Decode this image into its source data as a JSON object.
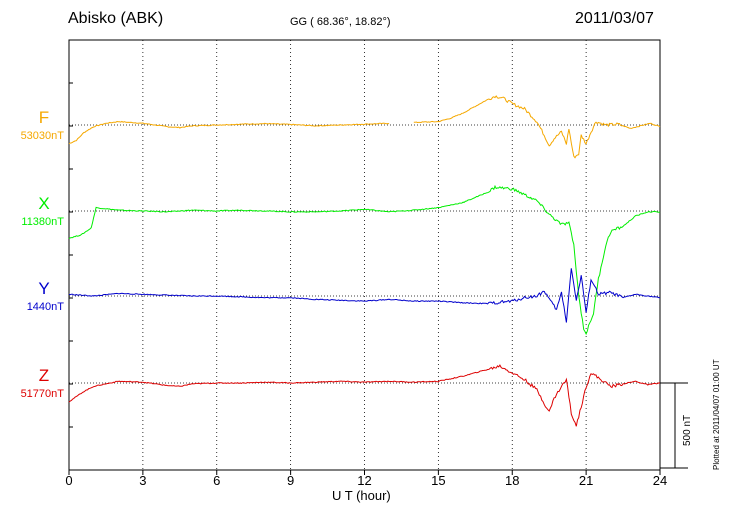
{
  "header": {
    "station": "Abisko (ABK)",
    "coordinates": "GG ( 68.36°,  18.82°)",
    "date": "2011/03/07",
    "plotted_note": "Plotted at 2011/04/07 01:00 UT"
  },
  "scale_bar": {
    "label": "500 nT",
    "nT": 500
  },
  "chart_data": {
    "type": "line",
    "xlabel": "U T (hour)",
    "xlim": [
      0,
      24
    ],
    "xticks": [
      "0",
      "3",
      "6",
      "9",
      "12",
      "15",
      "18",
      "21",
      "24"
    ],
    "grid": true,
    "series": [
      {
        "name": "F",
        "baseline_label": "53030nT",
        "color": "#f5a800",
        "gap": [
          13.0,
          14.0
        ],
        "points": [
          [
            0,
            -110
          ],
          [
            0.3,
            -90
          ],
          [
            0.6,
            -45
          ],
          [
            1.0,
            -10
          ],
          [
            1.5,
            10
          ],
          [
            2.0,
            20
          ],
          [
            3,
            10
          ],
          [
            4,
            -10
          ],
          [
            4.5,
            -15
          ],
          [
            5,
            -5
          ],
          [
            6,
            0
          ],
          [
            7,
            5
          ],
          [
            8,
            8
          ],
          [
            9,
            3
          ],
          [
            10,
            -5
          ],
          [
            11,
            0
          ],
          [
            12,
            5
          ],
          [
            13,
            10
          ],
          [
            14,
            15
          ],
          [
            15,
            20
          ],
          [
            15.5,
            40
          ],
          [
            16,
            70
          ],
          [
            16.5,
            110
          ],
          [
            17,
            150
          ],
          [
            17.3,
            170
          ],
          [
            17.6,
            160
          ],
          [
            18,
            125
          ],
          [
            18.5,
            95
          ],
          [
            19,
            20
          ],
          [
            19.3,
            -60
          ],
          [
            19.5,
            -120
          ],
          [
            19.7,
            -80
          ],
          [
            20,
            -40
          ],
          [
            20.2,
            -110
          ],
          [
            20.3,
            -20
          ],
          [
            20.5,
            -190
          ],
          [
            20.7,
            -170
          ],
          [
            20.8,
            -60
          ],
          [
            21,
            -110
          ],
          [
            21.2,
            -40
          ],
          [
            21.4,
            20
          ],
          [
            21.8,
            0
          ],
          [
            22.3,
            5
          ],
          [
            22.8,
            -20
          ],
          [
            23.2,
            -5
          ],
          [
            23.6,
            10
          ],
          [
            24,
            -10
          ]
        ]
      },
      {
        "name": "X",
        "baseline_label": "11380nT",
        "color": "#00ee00",
        "points": [
          [
            0,
            -160
          ],
          [
            0.5,
            -140
          ],
          [
            0.9,
            -100
          ],
          [
            1.1,
            20
          ],
          [
            2,
            5
          ],
          [
            3,
            0
          ],
          [
            4,
            -5
          ],
          [
            5,
            5
          ],
          [
            6,
            0
          ],
          [
            7,
            5
          ],
          [
            8,
            0
          ],
          [
            9,
            -5
          ],
          [
            10,
            -5
          ],
          [
            11,
            0
          ],
          [
            12,
            10
          ],
          [
            13,
            -5
          ],
          [
            14,
            5
          ],
          [
            15,
            20
          ],
          [
            16,
            50
          ],
          [
            17,
            110
          ],
          [
            17.3,
            140
          ],
          [
            18,
            130
          ],
          [
            18.3,
            110
          ],
          [
            19,
            60
          ],
          [
            19.5,
            -20
          ],
          [
            20,
            -80
          ],
          [
            20.3,
            -70
          ],
          [
            20.5,
            -200
          ],
          [
            20.7,
            -500
          ],
          [
            20.9,
            -690
          ],
          [
            21,
            -720
          ],
          [
            21.3,
            -600
          ],
          [
            21.5,
            -400
          ],
          [
            21.8,
            -200
          ],
          [
            22,
            -120
          ],
          [
            22.5,
            -90
          ],
          [
            23,
            -30
          ],
          [
            23.5,
            -5
          ],
          [
            24,
            -5
          ]
        ]
      },
      {
        "name": "Y",
        "baseline_label": "1440nT",
        "color": "#0000cc",
        "points": [
          [
            0,
            10
          ],
          [
            1,
            0
          ],
          [
            2,
            15
          ],
          [
            3,
            10
          ],
          [
            4,
            5
          ],
          [
            5,
            0
          ],
          [
            6,
            0
          ],
          [
            7,
            -5
          ],
          [
            8,
            -10
          ],
          [
            9,
            -10
          ],
          [
            10,
            -20
          ],
          [
            11,
            -25
          ],
          [
            12,
            -30
          ],
          [
            13,
            -20
          ],
          [
            14,
            -30
          ],
          [
            15,
            -30
          ],
          [
            16,
            -40
          ],
          [
            17,
            -45
          ],
          [
            18,
            -30
          ],
          [
            18.5,
            -10
          ],
          [
            19,
            0
          ],
          [
            19.3,
            30
          ],
          [
            19.6,
            -40
          ],
          [
            19.8,
            -80
          ],
          [
            20,
            20
          ],
          [
            20.2,
            -150
          ],
          [
            20.4,
            170
          ],
          [
            20.6,
            -30
          ],
          [
            20.8,
            120
          ],
          [
            21,
            -100
          ],
          [
            21.2,
            100
          ],
          [
            21.5,
            10
          ],
          [
            22,
            20
          ],
          [
            22.5,
            -10
          ],
          [
            23,
            10
          ],
          [
            23.5,
            0
          ],
          [
            24,
            -10
          ]
        ]
      },
      {
        "name": "Z",
        "baseline_label": "51770nT",
        "color": "#dd0000",
        "points": [
          [
            0,
            -110
          ],
          [
            0.3,
            -80
          ],
          [
            0.6,
            -50
          ],
          [
            1,
            -20
          ],
          [
            1.5,
            -5
          ],
          [
            2,
            10
          ],
          [
            3,
            5
          ],
          [
            4,
            -15
          ],
          [
            4.5,
            -20
          ],
          [
            5,
            -5
          ],
          [
            6,
            0
          ],
          [
            7,
            0
          ],
          [
            8,
            5
          ],
          [
            9,
            0
          ],
          [
            10,
            5
          ],
          [
            11,
            10
          ],
          [
            12,
            5
          ],
          [
            13,
            10
          ],
          [
            14,
            5
          ],
          [
            15,
            10
          ],
          [
            16,
            40
          ],
          [
            17,
            80
          ],
          [
            17.5,
            100
          ],
          [
            18,
            60
          ],
          [
            18.5,
            20
          ],
          [
            19,
            -40
          ],
          [
            19.3,
            -120
          ],
          [
            19.5,
            -170
          ],
          [
            19.7,
            -90
          ],
          [
            20,
            -20
          ],
          [
            20.2,
            20
          ],
          [
            20.4,
            -180
          ],
          [
            20.6,
            -250
          ],
          [
            20.8,
            -140
          ],
          [
            21,
            -20
          ],
          [
            21.2,
            60
          ],
          [
            21.5,
            30
          ],
          [
            22,
            -20
          ],
          [
            22.5,
            -5
          ],
          [
            23,
            10
          ],
          [
            23.5,
            -10
          ],
          [
            24,
            0
          ]
        ]
      }
    ]
  }
}
